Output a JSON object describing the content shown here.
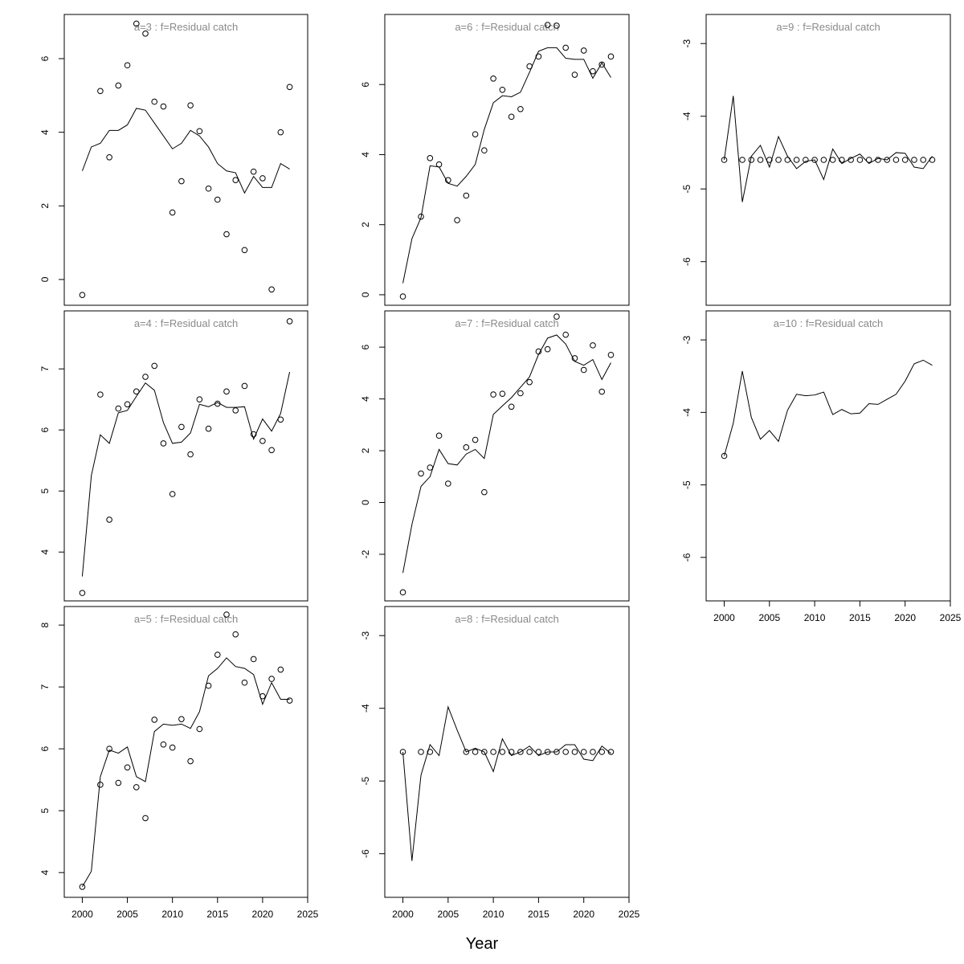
{
  "figure": {
    "xlabel": "Year"
  },
  "chart_data": [
    {
      "type": "line",
      "title": "a=3  :  f=Residual catch",
      "yticks": [
        0,
        2,
        4,
        6
      ],
      "ylim": [
        -0.7,
        7.2
      ],
      "show_xaxis": false,
      "x": [
        2000,
        2001,
        2002,
        2003,
        2004,
        2005,
        2006,
        2007,
        2008,
        2009,
        2010,
        2011,
        2012,
        2013,
        2014,
        2015,
        2016,
        2017,
        2018,
        2019,
        2020,
        2021,
        2022,
        2023
      ],
      "series": [
        {
          "kind": "line",
          "values": [
            2.95,
            3.6,
            3.7,
            4.05,
            4.05,
            4.2,
            4.65,
            4.6,
            4.25,
            3.9,
            3.55,
            3.7,
            4.05,
            3.9,
            3.6,
            3.15,
            2.95,
            2.9,
            2.35,
            2.8,
            2.5,
            2.5,
            3.15,
            3.0
          ]
        },
        {
          "kind": "points",
          "values": [
            -0.42,
            null,
            5.12,
            3.32,
            5.27,
            5.82,
            6.95,
            6.68,
            4.83,
            4.7,
            1.82,
            2.67,
            4.73,
            4.03,
            2.47,
            2.17,
            1.23,
            2.7,
            0.8,
            2.93,
            2.75,
            -0.27,
            4.0,
            5.23
          ]
        }
      ]
    },
    {
      "type": "line",
      "title": "a=4  :  f=Residual catch",
      "yticks": [
        4,
        5,
        6,
        7
      ],
      "ylim": [
        3.2,
        7.95
      ],
      "show_xaxis": false,
      "x": [
        2000,
        2001,
        2002,
        2003,
        2004,
        2005,
        2006,
        2007,
        2008,
        2009,
        2010,
        2011,
        2012,
        2013,
        2014,
        2015,
        2016,
        2017,
        2018,
        2019,
        2020,
        2021,
        2022,
        2023
      ],
      "series": [
        {
          "kind": "line",
          "values": [
            3.6,
            5.25,
            5.92,
            5.78,
            6.28,
            6.32,
            6.55,
            6.77,
            6.65,
            6.12,
            5.78,
            5.8,
            5.95,
            6.42,
            6.38,
            6.45,
            6.37,
            6.37,
            6.38,
            5.85,
            6.18,
            5.98,
            6.27,
            6.95
          ]
        },
        {
          "kind": "points",
          "values": [
            3.33,
            null,
            6.58,
            4.53,
            6.35,
            6.42,
            6.63,
            6.87,
            7.05,
            5.78,
            4.95,
            6.05,
            5.6,
            6.5,
            6.02,
            6.43,
            6.63,
            6.32,
            6.72,
            5.93,
            5.82,
            5.67,
            6.17,
            7.78
          ]
        }
      ]
    },
    {
      "type": "line",
      "title": "a=5  :  f=Residual catch",
      "yticks": [
        4,
        5,
        6,
        7,
        8
      ],
      "ylim": [
        3.6,
        8.3
      ],
      "show_xaxis": true,
      "x": [
        2000,
        2001,
        2002,
        2003,
        2004,
        2005,
        2006,
        2007,
        2008,
        2009,
        2010,
        2011,
        2012,
        2013,
        2014,
        2015,
        2016,
        2017,
        2018,
        2019,
        2020,
        2021,
        2022,
        2023
      ],
      "series": [
        {
          "kind": "line",
          "values": [
            3.77,
            4.02,
            5.55,
            5.98,
            5.93,
            6.03,
            5.55,
            5.47,
            6.28,
            6.4,
            6.38,
            6.4,
            6.33,
            6.6,
            7.18,
            7.3,
            7.47,
            7.33,
            7.3,
            7.2,
            6.72,
            7.07,
            6.8,
            6.8
          ]
        },
        {
          "kind": "points",
          "values": [
            3.77,
            null,
            5.42,
            6.0,
            5.45,
            5.7,
            5.38,
            4.88,
            6.47,
            6.07,
            6.02,
            6.48,
            5.8,
            6.32,
            7.02,
            7.52,
            8.17,
            7.85,
            7.07,
            7.45,
            6.85,
            7.13,
            7.28,
            6.78
          ]
        }
      ]
    },
    {
      "type": "line",
      "title": "a=6  :  f=Residual catch",
      "yticks": [
        0,
        2,
        4,
        6
      ],
      "ylim": [
        -0.3,
        8.0
      ],
      "show_xaxis": false,
      "x": [
        2000,
        2001,
        2002,
        2003,
        2004,
        2005,
        2006,
        2007,
        2008,
        2009,
        2010,
        2011,
        2012,
        2013,
        2014,
        2015,
        2016,
        2017,
        2018,
        2019,
        2020,
        2021,
        2022,
        2023
      ],
      "series": [
        {
          "kind": "line",
          "values": [
            0.33,
            1.6,
            2.2,
            3.68,
            3.65,
            3.18,
            3.1,
            3.38,
            3.72,
            4.72,
            5.48,
            5.68,
            5.65,
            5.78,
            6.35,
            6.95,
            7.05,
            7.05,
            6.75,
            6.72,
            6.72,
            6.18,
            6.62,
            6.2
          ]
        },
        {
          "kind": "points",
          "values": [
            -0.05,
            null,
            2.23,
            3.9,
            3.72,
            3.27,
            2.13,
            2.83,
            4.58,
            4.12,
            6.17,
            5.85,
            5.08,
            5.3,
            6.52,
            6.8,
            7.7,
            7.68,
            7.05,
            6.28,
            6.97,
            6.38,
            6.57,
            6.8
          ]
        }
      ]
    },
    {
      "type": "line",
      "title": "a=7  :  f=Residual catch",
      "yticks": [
        -2,
        0,
        2,
        4,
        6
      ],
      "ylim": [
        -3.8,
        7.4
      ],
      "show_xaxis": false,
      "x": [
        2000,
        2001,
        2002,
        2003,
        2004,
        2005,
        2006,
        2007,
        2008,
        2009,
        2010,
        2011,
        2012,
        2013,
        2014,
        2015,
        2016,
        2017,
        2018,
        2019,
        2020,
        2021,
        2022,
        2023
      ],
      "series": [
        {
          "kind": "line",
          "values": [
            -2.72,
            -0.85,
            0.62,
            1.0,
            2.05,
            1.5,
            1.45,
            1.87,
            2.05,
            1.7,
            3.4,
            3.73,
            4.05,
            4.45,
            4.85,
            5.72,
            6.35,
            6.47,
            6.12,
            5.45,
            5.3,
            5.52,
            4.75,
            5.4
          ]
        },
        {
          "kind": "points",
          "values": [
            -3.47,
            null,
            1.12,
            1.35,
            2.58,
            0.73,
            null,
            2.13,
            2.42,
            0.4,
            4.17,
            4.2,
            3.7,
            4.22,
            4.65,
            5.83,
            5.92,
            7.18,
            6.48,
            5.57,
            5.12,
            6.07,
            4.28,
            5.7
          ]
        }
      ]
    },
    {
      "type": "line",
      "title": "a=8  :  f=Residual catch",
      "yticks": [
        -6,
        -5,
        -4,
        -3
      ],
      "ylim": [
        -6.6,
        -2.6
      ],
      "show_xaxis": true,
      "x": [
        2000,
        2001,
        2002,
        2003,
        2004,
        2005,
        2006,
        2007,
        2008,
        2009,
        2010,
        2011,
        2012,
        2013,
        2014,
        2015,
        2016,
        2017,
        2018,
        2019,
        2020,
        2021,
        2022,
        2023
      ],
      "series": [
        {
          "kind": "line",
          "values": [
            -4.6,
            -6.1,
            -4.92,
            -4.5,
            -4.65,
            -3.98,
            -4.3,
            -4.6,
            -4.55,
            -4.6,
            -4.87,
            -4.42,
            -4.65,
            -4.6,
            -4.52,
            -4.65,
            -4.6,
            -4.6,
            -4.5,
            -4.5,
            -4.7,
            -4.72,
            -4.52,
            -4.62
          ]
        },
        {
          "kind": "points",
          "values": [
            -4.6,
            null,
            -4.6,
            -4.6,
            null,
            null,
            null,
            -4.6,
            -4.6,
            -4.6,
            -4.6,
            -4.6,
            -4.6,
            -4.6,
            -4.6,
            -4.6,
            -4.6,
            -4.6,
            -4.6,
            -4.6,
            -4.6,
            -4.6,
            -4.6,
            -4.6
          ]
        }
      ]
    },
    {
      "type": "line",
      "title": "a=9  :  f=Residual catch",
      "yticks": [
        -6,
        -5,
        -4,
        -3
      ],
      "ylim": [
        -6.6,
        -2.6
      ],
      "show_xaxis": false,
      "x": [
        2000,
        2001,
        2002,
        2003,
        2004,
        2005,
        2006,
        2007,
        2008,
        2009,
        2010,
        2011,
        2012,
        2013,
        2014,
        2015,
        2016,
        2017,
        2018,
        2019,
        2020,
        2021,
        2022,
        2023
      ],
      "series": [
        {
          "kind": "line",
          "values": [
            -4.6,
            -3.72,
            -5.18,
            -4.55,
            -4.4,
            -4.7,
            -4.28,
            -4.55,
            -4.72,
            -4.62,
            -4.6,
            -4.87,
            -4.45,
            -4.65,
            -4.58,
            -4.52,
            -4.65,
            -4.58,
            -4.6,
            -4.5,
            -4.51,
            -4.7,
            -4.72,
            -4.55
          ]
        },
        {
          "kind": "points",
          "values": [
            -4.6,
            null,
            -4.6,
            -4.6,
            -4.6,
            -4.6,
            -4.6,
            -4.6,
            -4.6,
            -4.6,
            -4.6,
            -4.6,
            -4.6,
            -4.6,
            -4.6,
            -4.6,
            -4.6,
            -4.6,
            -4.6,
            -4.6,
            -4.6,
            -4.6,
            -4.6,
            -4.6
          ]
        }
      ]
    },
    {
      "type": "line",
      "title": "a=10  :  f=Residual catch",
      "yticks": [
        -6,
        -5,
        -4,
        -3
      ],
      "ylim": [
        -6.6,
        -2.6
      ],
      "show_xaxis": true,
      "x": [
        2000,
        2001,
        2002,
        2003,
        2004,
        2005,
        2006,
        2007,
        2008,
        2009,
        2010,
        2011,
        2012,
        2013,
        2014,
        2015,
        2016,
        2017,
        2018,
        2019,
        2020,
        2021,
        2022,
        2023
      ],
      "series": [
        {
          "kind": "line",
          "values": [
            -4.6,
            -4.15,
            -3.43,
            -4.07,
            -4.37,
            -4.25,
            -4.4,
            -3.97,
            -3.75,
            -3.77,
            -3.76,
            -3.72,
            -4.03,
            -3.96,
            -4.02,
            -4.01,
            -3.88,
            -3.89,
            -3.82,
            -3.75,
            -3.57,
            -3.33,
            -3.28,
            -3.35
          ]
        },
        {
          "kind": "points",
          "values": [
            -4.6,
            null,
            null,
            null,
            null,
            null,
            null,
            null,
            null,
            null,
            null,
            null,
            null,
            null,
            null,
            null,
            null,
            null,
            null,
            null,
            null,
            null,
            null,
            null
          ]
        }
      ]
    }
  ],
  "xaxis": {
    "range": [
      1998,
      2025
    ],
    "ticks": [
      2000,
      2005,
      2010,
      2015,
      2020,
      2025
    ]
  }
}
